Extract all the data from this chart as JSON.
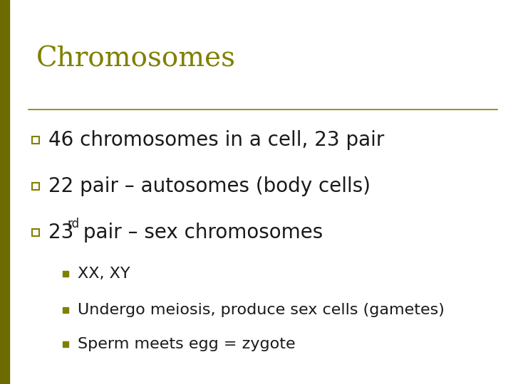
{
  "title": "Chromosomes",
  "title_color": "#808000",
  "title_fontsize": 28,
  "title_font": "serif",
  "background_color": "#ffffff",
  "left_bar_color": "#6b6b00",
  "separator_line_color": "#808000",
  "bullet_color": "#808000",
  "sub_bullet_color": "#808000",
  "bullet_items": [
    {
      "text": "46 chromosomes in a cell, 23 pair",
      "superscript": null,
      "text_after": null
    },
    {
      "text": "22 pair – autosomes (body cells)",
      "superscript": null,
      "text_after": null
    },
    {
      "text": "23",
      "superscript": "rd",
      "text_after": " pair – sex chromosomes"
    }
  ],
  "sub_items": [
    "XX, XY",
    "Undergo meiosis, produce sex cells (gametes)",
    "Sperm meets egg = zygote"
  ],
  "bullet_fontsize": 20,
  "sub_fontsize": 16,
  "text_color": "#1a1a1a",
  "font_family": "sans-serif"
}
